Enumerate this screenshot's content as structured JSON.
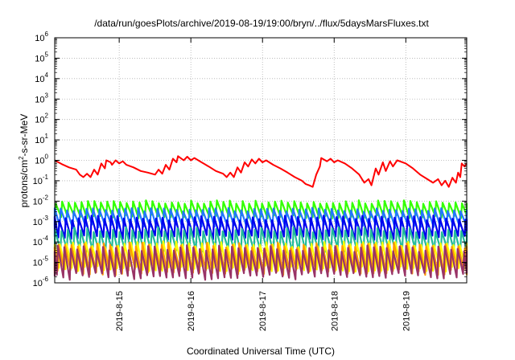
{
  "chart_data": {
    "type": "line",
    "title": "/data/run/goesPlots/archive/2019-08-19/19:00/bryn/../flux/5daysMarsFluxes.txt",
    "xlabel": "Coordinated Universal Time (UTC)",
    "ylabel_main": "protons/cm",
    "ylabel_sup": "2",
    "ylabel_rest": "-s-sr-MeV",
    "yscale": "log",
    "ylim": [
      1e-06,
      1000000.0
    ],
    "y_tick_exponents": [
      -6,
      -5,
      -4,
      -3,
      -2,
      -1,
      0,
      1,
      2,
      3,
      4,
      5,
      6
    ],
    "y_tick_base": "10",
    "xlim": [
      14.1,
      19.85
    ],
    "x_ticks": [
      {
        "value": 15,
        "label": "2019-8-15"
      },
      {
        "value": 16,
        "label": "2019-8-16"
      },
      {
        "value": 17,
        "label": "2019-8-17"
      },
      {
        "value": 18,
        "label": "2019-8-18"
      },
      {
        "value": 19,
        "label": "2019-8-19"
      }
    ],
    "grid": true,
    "legend": "none",
    "series": [
      {
        "color": "#ff0000",
        "points": [
          [
            14.1,
            1.0
          ],
          [
            14.2,
            0.65
          ],
          [
            14.3,
            0.45
          ],
          [
            14.4,
            0.35
          ],
          [
            14.45,
            0.2
          ],
          [
            14.5,
            0.15
          ],
          [
            14.55,
            0.22
          ],
          [
            14.6,
            0.15
          ],
          [
            14.65,
            0.35
          ],
          [
            14.7,
            0.2
          ],
          [
            14.75,
            0.7
          ],
          [
            14.8,
            0.4
          ],
          [
            14.82,
            1.0
          ],
          [
            14.88,
            0.8
          ],
          [
            14.9,
            0.6
          ],
          [
            14.95,
            1.0
          ],
          [
            15.0,
            0.7
          ],
          [
            15.05,
            0.9
          ],
          [
            15.1,
            0.6
          ],
          [
            15.2,
            0.45
          ],
          [
            15.3,
            0.3
          ],
          [
            15.4,
            0.25
          ],
          [
            15.5,
            0.2
          ],
          [
            15.55,
            0.35
          ],
          [
            15.6,
            0.22
          ],
          [
            15.65,
            0.6
          ],
          [
            15.7,
            0.35
          ],
          [
            15.75,
            1.2
          ],
          [
            15.8,
            0.8
          ],
          [
            15.82,
            1.6
          ],
          [
            15.9,
            1.0
          ],
          [
            15.95,
            1.5
          ],
          [
            16.0,
            1.0
          ],
          [
            16.05,
            1.3
          ],
          [
            16.15,
            0.8
          ],
          [
            16.25,
            0.5
          ],
          [
            16.35,
            0.3
          ],
          [
            16.45,
            0.22
          ],
          [
            16.5,
            0.15
          ],
          [
            16.55,
            0.25
          ],
          [
            16.6,
            0.15
          ],
          [
            16.65,
            0.45
          ],
          [
            16.7,
            0.25
          ],
          [
            16.75,
            0.8
          ],
          [
            16.8,
            0.5
          ],
          [
            16.85,
            1.1
          ],
          [
            16.9,
            0.7
          ],
          [
            16.95,
            1.2
          ],
          [
            17.0,
            0.8
          ],
          [
            17.05,
            1.0
          ],
          [
            17.15,
            0.6
          ],
          [
            17.25,
            0.4
          ],
          [
            17.35,
            0.25
          ],
          [
            17.45,
            0.15
          ],
          [
            17.55,
            0.1
          ],
          [
            17.6,
            0.07
          ],
          [
            17.65,
            0.06
          ],
          [
            17.7,
            0.05
          ],
          [
            17.75,
            0.2
          ],
          [
            17.8,
            0.5
          ],
          [
            17.82,
            1.3
          ],
          [
            17.9,
            0.9
          ],
          [
            17.95,
            1.2
          ],
          [
            18.0,
            0.8
          ],
          [
            18.05,
            1.0
          ],
          [
            18.15,
            0.7
          ],
          [
            18.25,
            0.4
          ],
          [
            18.35,
            0.2
          ],
          [
            18.42,
            0.08
          ],
          [
            18.48,
            0.12
          ],
          [
            18.52,
            0.06
          ],
          [
            18.58,
            0.4
          ],
          [
            18.62,
            0.2
          ],
          [
            18.68,
            0.8
          ],
          [
            18.72,
            0.3
          ],
          [
            18.78,
            0.9
          ],
          [
            18.82,
            0.5
          ],
          [
            18.88,
            1.0
          ],
          [
            19.0,
            0.7
          ],
          [
            19.1,
            0.4
          ],
          [
            19.2,
            0.2
          ],
          [
            19.3,
            0.12
          ],
          [
            19.38,
            0.08
          ],
          [
            19.45,
            0.12
          ],
          [
            19.5,
            0.06
          ],
          [
            19.55,
            0.1
          ],
          [
            19.6,
            0.05
          ],
          [
            19.65,
            0.14
          ],
          [
            19.7,
            0.08
          ],
          [
            19.73,
            0.25
          ],
          [
            19.76,
            0.15
          ],
          [
            19.78,
            0.7
          ],
          [
            19.82,
            0.5
          ],
          [
            19.85,
            0.7
          ]
        ]
      },
      {
        "color": "#33ff00",
        "baseline": 0.004,
        "spread": 0.45,
        "period": 0.09,
        "phase": 0.0
      },
      {
        "color": "#2277ff",
        "baseline": 0.0015,
        "spread": 0.5,
        "period": 0.09,
        "phase": 0.02
      },
      {
        "color": "#0000ee",
        "baseline": 0.0005,
        "spread": 0.6,
        "period": 0.09,
        "phase": 0.04
      },
      {
        "color": "#22bb99",
        "baseline": 0.00012,
        "spread": 0.65,
        "period": 0.09,
        "phase": 0.01
      },
      {
        "color": "#ffff00",
        "baseline": 2e-05,
        "spread": 0.75,
        "period": 0.09,
        "phase": 0.03
      },
      {
        "color": "#ff9900",
        "baseline": 1.5e-05,
        "spread": 0.8,
        "period": 0.09,
        "phase": 0.05
      },
      {
        "color": "#993366",
        "baseline": 1e-05,
        "spread": 0.85,
        "period": 0.09,
        "phase": 0.06
      }
    ]
  }
}
